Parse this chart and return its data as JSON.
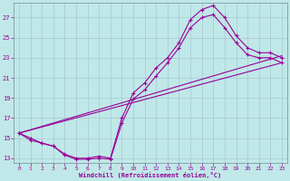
{
  "xlabel": "Windchill (Refroidissement éolien,°C)",
  "bg_color": "#c0e8e8",
  "line_color": "#990099",
  "grid_color": "#a0c0d0",
  "ylim": [
    12.5,
    28.5
  ],
  "xlim": [
    -0.5,
    23.5
  ],
  "yticks": [
    13,
    15,
    17,
    19,
    21,
    23,
    25,
    27
  ],
  "xticks": [
    0,
    1,
    2,
    3,
    4,
    5,
    6,
    7,
    8,
    9,
    10,
    11,
    12,
    13,
    14,
    15,
    16,
    17,
    18,
    19,
    20,
    21,
    22,
    23
  ],
  "series": [
    {
      "x": [
        0,
        1,
        2,
        3,
        4,
        5,
        6,
        7,
        8,
        9,
        10,
        11,
        12,
        13,
        14,
        15,
        16,
        17,
        18,
        19,
        20,
        21,
        22,
        23
      ],
      "y": [
        15.5,
        15.0,
        14.5,
        14.2,
        13.4,
        13.0,
        13.0,
        13.2,
        13.0,
        17.0,
        19.5,
        20.5,
        22.0,
        23.0,
        24.5,
        26.8,
        27.8,
        28.2,
        27.0,
        25.2,
        24.0,
        23.5,
        23.5,
        23.0
      ],
      "marker": true
    },
    {
      "x": [
        0,
        1,
        2,
        3,
        4,
        5,
        6,
        7,
        8,
        9,
        10,
        11,
        12,
        13,
        14,
        15,
        16,
        17,
        18,
        19,
        20,
        21,
        22,
        23
      ],
      "y": [
        15.5,
        14.8,
        14.5,
        14.2,
        13.3,
        12.9,
        12.9,
        13.0,
        12.9,
        16.5,
        18.9,
        19.8,
        21.2,
        22.5,
        24.0,
        26.0,
        27.0,
        27.3,
        26.0,
        24.5,
        23.3,
        23.0,
        23.0,
        22.5
      ],
      "marker": true
    },
    {
      "x": [
        0,
        23
      ],
      "y": [
        15.5,
        23.2
      ],
      "marker": false
    },
    {
      "x": [
        0,
        23
      ],
      "y": [
        15.5,
        22.5
      ],
      "marker": false
    }
  ]
}
